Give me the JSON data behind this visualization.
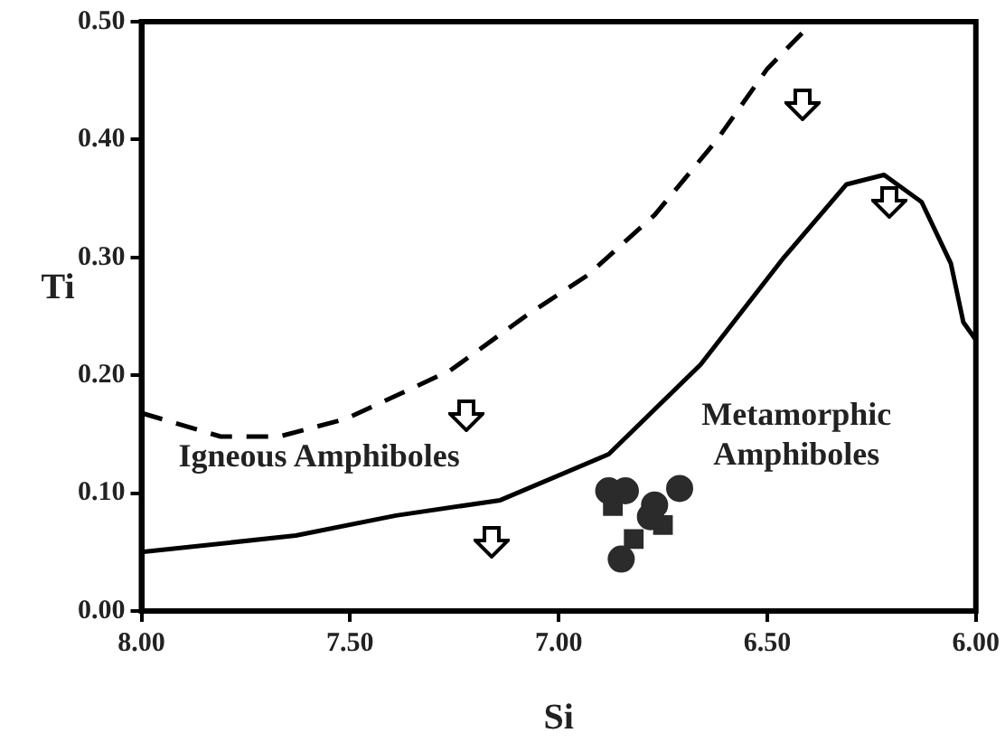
{
  "chart_data": {
    "type": "scatter",
    "xlabel": "Si",
    "ylabel": "Ti",
    "xlim": [
      8,
      6
    ],
    "ylim": [
      0,
      0.5
    ],
    "xticks": [
      {
        "value": 8,
        "label": "8.00"
      },
      {
        "value": 7.5,
        "label": "7.50"
      },
      {
        "value": 7,
        "label": "7.00"
      },
      {
        "value": 6.5,
        "label": "6.50"
      },
      {
        "value": 6,
        "label": "6.00"
      }
    ],
    "yticks": [
      {
        "value": 0,
        "label": "0.00"
      },
      {
        "value": 0.1,
        "label": "0.10"
      },
      {
        "value": 0.2,
        "label": "0.20"
      },
      {
        "value": 0.3,
        "label": "0.30"
      },
      {
        "value": 0.4,
        "label": "0.40"
      },
      {
        "value": 0.5,
        "label": "0.50"
      }
    ],
    "grid": false,
    "legend": false,
    "series": [
      {
        "type": "line",
        "color": "#000000",
        "line_style": "dashed",
        "marker": "none",
        "x": [
          8.0,
          7.81,
          7.67,
          7.51,
          7.26,
          7.08,
          6.93,
          6.77,
          6.62,
          6.5,
          6.39
        ],
        "values": [
          0.168,
          0.148,
          0.148,
          0.163,
          0.204,
          0.25,
          0.285,
          0.336,
          0.4,
          0.46,
          0.5
        ]
      },
      {
        "type": "line",
        "color": "#000000",
        "line_style": "solid",
        "marker": "none",
        "x": [
          8.0,
          7.63,
          7.39,
          7.14,
          6.88,
          6.66,
          6.46,
          6.31,
          6.22,
          6.13,
          6.06,
          6.03,
          6.0
        ],
        "values": [
          0.05,
          0.064,
          0.081,
          0.094,
          0.133,
          0.209,
          0.3,
          0.362,
          0.37,
          0.347,
          0.295,
          0.245,
          0.23
        ]
      },
      {
        "color": "#2b2b2b",
        "marker": "circle",
        "x": [
          6.88,
          6.84,
          6.71,
          6.77,
          6.78,
          6.85
        ],
        "values": [
          0.102,
          0.102,
          0.104,
          0.09,
          0.08,
          0.044
        ]
      },
      {
        "color": "#2b2b2b",
        "marker": "square",
        "x": [
          6.87,
          6.75,
          6.82
        ],
        "values": [
          0.089,
          0.073,
          0.061
        ]
      }
    ],
    "annotations": [
      "Igneous Amphiboles",
      "Metamorphic\nAmphiboles"
    ]
  }
}
